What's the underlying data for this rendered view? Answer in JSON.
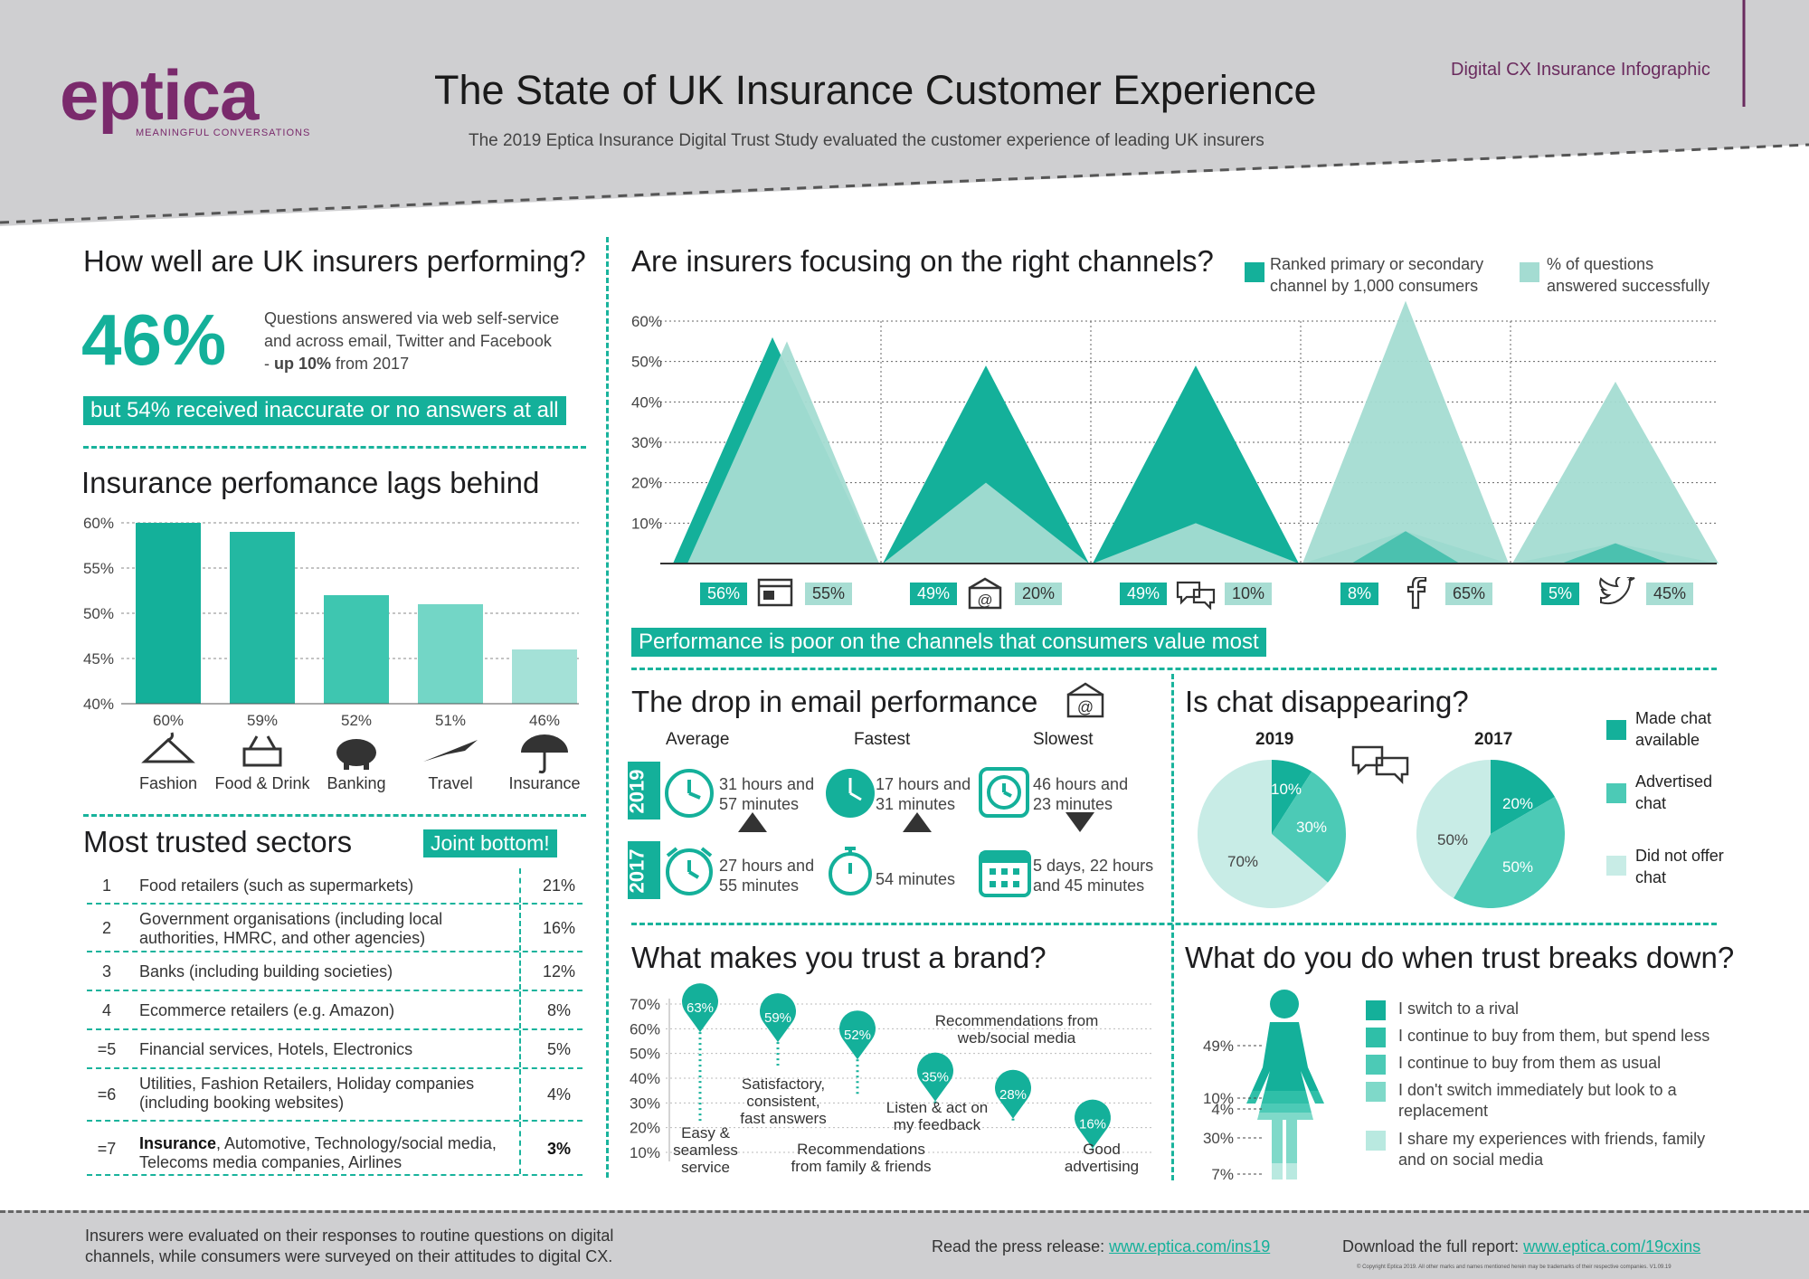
{
  "header": {
    "logo_word": "eptica",
    "logo_tagline": "MEANINGFUL CONVERSATIONS",
    "title": "The State of UK Insurance Customer Experience",
    "subtitle": "The 2019 Eptica Insurance Digital Trust Study evaluated the customer experience of leading UK insurers",
    "corner_label": "Digital CX Insurance Infographic"
  },
  "performing": {
    "heading": "How well are UK insurers performing?",
    "big_value": "46%",
    "desc_line1": "Questions answered via web self-service",
    "desc_line2": "and across email, Twitter and Facebook",
    "desc_line3_pre": "- ",
    "desc_line3_bold": "up 10%",
    "desc_line3_post": " from 2017",
    "banner": "but 54% received inaccurate or no answers at all"
  },
  "lags": {
    "heading": "Insurance perfomance lags behind",
    "y_ticks": [
      "60%",
      "55%",
      "50%",
      "45%",
      "40%"
    ],
    "bars": [
      {
        "label": "Fashion",
        "value_label": "60%",
        "icon": "hanger-icon"
      },
      {
        "label": "Food & Drink",
        "value_label": "59%",
        "icon": "basket-icon"
      },
      {
        "label": "Banking",
        "value_label": "52%",
        "icon": "piggy-bank-icon"
      },
      {
        "label": "Travel",
        "value_label": "51%",
        "icon": "plane-icon"
      },
      {
        "label": "Insurance",
        "value_label": "46%",
        "icon": "umbrella-icon"
      }
    ]
  },
  "chart_data": [
    {
      "type": "bar",
      "title": "Insurance perfomance lags behind",
      "categories": [
        "Fashion",
        "Food & Drink",
        "Banking",
        "Travel",
        "Insurance"
      ],
      "values": [
        60,
        59,
        52,
        51,
        46
      ],
      "ylim": [
        40,
        60
      ],
      "colors": [
        "#14b09a",
        "#23b8a2",
        "#3ec6b0",
        "#73d6c6",
        "#a4e1d7"
      ],
      "grid": true
    },
    {
      "type": "area",
      "title": "Are insurers focusing on the right channels?",
      "categories": [
        "Web",
        "Email",
        "Chat",
        "Facebook",
        "Twitter"
      ],
      "series": [
        {
          "name": "Ranked primary or secondary channel by 1,000 consumers",
          "values": [
            56,
            49,
            49,
            8,
            5
          ],
          "color": "#14b09a"
        },
        {
          "name": "% of questions answered successfully",
          "values": [
            55,
            20,
            10,
            65,
            45
          ],
          "color": "#a4dcd2"
        }
      ],
      "ylim": [
        0,
        60
      ],
      "grid": true
    },
    {
      "type": "pie",
      "title": "2019",
      "labels": [
        "Made chat available",
        "Advertised chat",
        "Did not offer chat"
      ],
      "values": [
        10,
        30,
        70
      ],
      "colors": [
        "#14b09a",
        "#4ccab6",
        "#c8ece6"
      ]
    },
    {
      "type": "pie",
      "title": "2017",
      "labels": [
        "Made chat available",
        "Advertised chat",
        "Did not offer chat"
      ],
      "values": [
        20,
        50,
        50
      ],
      "colors": [
        "#14b09a",
        "#4ccab6",
        "#c8ece6"
      ]
    },
    {
      "type": "scatter",
      "title": "What makes you trust a brand?",
      "categories": [
        "Easy & seamless service",
        "Satisfactory, consistent, fast answers",
        "Recommendations from family & friends",
        "Listen & act on my feedback",
        "Recommendations from web/social media",
        "Good advertising"
      ],
      "values": [
        63,
        59,
        52,
        35,
        28,
        16
      ],
      "ylim": [
        10,
        70
      ]
    },
    {
      "type": "bar",
      "title": "What do you do when trust breaks down?",
      "categories": [
        "I switch to a rival",
        "I continue to buy from them, but spend less",
        "I continue to buy from them as usual",
        "I don't switch immediately but look to a replacement",
        "I share my experiences with friends, family and on social media"
      ],
      "values": [
        49,
        10,
        4,
        30,
        7
      ]
    }
  ],
  "channels": {
    "heading": "Are insurers focusing on the right channels?",
    "legend_primary": [
      "Ranked primary or secondary",
      "channel by 1,000 consumers"
    ],
    "legend_success": [
      "% of questions",
      "answered successfully"
    ],
    "y_ticks": [
      "60%",
      "50%",
      "40%",
      "30%",
      "20%",
      "10%"
    ],
    "items": [
      {
        "primary": "56%",
        "success": "55%",
        "icon": "web-page-icon"
      },
      {
        "primary": "49%",
        "success": "20%",
        "icon": "email-icon"
      },
      {
        "primary": "49%",
        "success": "10%",
        "icon": "chat-icon"
      },
      {
        "primary": "8%",
        "success": "65%",
        "icon": "facebook-icon"
      },
      {
        "primary": "5%",
        "success": "45%",
        "icon": "twitter-icon"
      }
    ],
    "banner": "Performance is poor on the channels that consumers value most"
  },
  "trusted": {
    "heading": "Most trusted sectors",
    "badge": "Joint bottom!",
    "rows": [
      {
        "rank": "1",
        "label": "Food retailers (such as supermarkets)",
        "pct": "21%"
      },
      {
        "rank": "2",
        "label": "Government organisations (including local authorities, HMRC, and other agencies)",
        "pct": "16%"
      },
      {
        "rank": "3",
        "label": "Banks (including building societies)",
        "pct": "12%"
      },
      {
        "rank": "4",
        "label": "Ecommerce retailers (e.g. Amazon)",
        "pct": "8%"
      },
      {
        "rank": "=5",
        "label": "Financial services, Hotels, Electronics",
        "pct": "5%"
      },
      {
        "rank": "=6",
        "label": "Utilities, Fashion Retailers, Holiday companies (including booking websites)",
        "pct": "4%"
      }
    ],
    "last_row": {
      "rank": "=7",
      "bold": "Insurance",
      "rest": ", Automotive, Technology/social media, Telecoms media companies, Airlines",
      "pct": "3%"
    }
  },
  "email": {
    "heading": "The drop in email performance",
    "columns": [
      "Average",
      "Fastest",
      "Slowest"
    ],
    "year_2019": "2019",
    "year_2017": "2017",
    "row_2019": [
      "31 hours and 57 minutes",
      "17 hours and 31 minutes",
      "46 hours and 23 minutes"
    ],
    "row_2017": [
      "27 hours and 55 minutes",
      "54 minutes",
      "5 days, 22 hours and 45 minutes"
    ]
  },
  "chat": {
    "heading": "Is chat disappearing?",
    "year_a": "2019",
    "year_b": "2017",
    "pie_2019_labels": [
      "10%",
      "30%",
      "70%"
    ],
    "pie_2017_labels": [
      "20%",
      "50%",
      "50%"
    ],
    "legend": [
      "Made chat available",
      "Advertised chat",
      "Did not offer chat"
    ]
  },
  "trust_brand": {
    "heading": "What makes you trust a brand?",
    "y_ticks": [
      "70%",
      "60%",
      "50%",
      "40%",
      "30%",
      "20%",
      "10%"
    ],
    "pins": [
      "63%",
      "59%",
      "52%",
      "35%",
      "28%",
      "16%"
    ],
    "labels": [
      "Easy & seamless service",
      "Satisfactory, consistent, fast answers",
      "Recommendations from family & friends",
      "Listen & act on my feedback",
      "Recommendations from web/social media",
      "Good advertising"
    ]
  },
  "breakdown": {
    "heading": "What do you do when trust breaks down?",
    "values": [
      "49%",
      "10%",
      "4%",
      "30%",
      "7%"
    ],
    "items": [
      "I switch to a rival",
      "I continue to buy from them, but spend less",
      "I continue to buy from them as usual",
      "I don't switch immediately but look to a replacement",
      "I share my experiences with friends, family and on social media"
    ]
  },
  "footer": {
    "note": "Insurers were evaluated on their responses to routine questions on digital channels, while consumers were surveyed on their attitudes to digital CX.",
    "press_pre": "Read the press release: ",
    "press_link": "www.eptica.com/ins19",
    "report_pre": "Download the full report: ",
    "report_link": "www.eptica.com/19cxins",
    "copyright": "© Copyright Eptica 2019. All other marks and names mentioned herein may be trademarks of their respective companies. V1.09.19"
  }
}
